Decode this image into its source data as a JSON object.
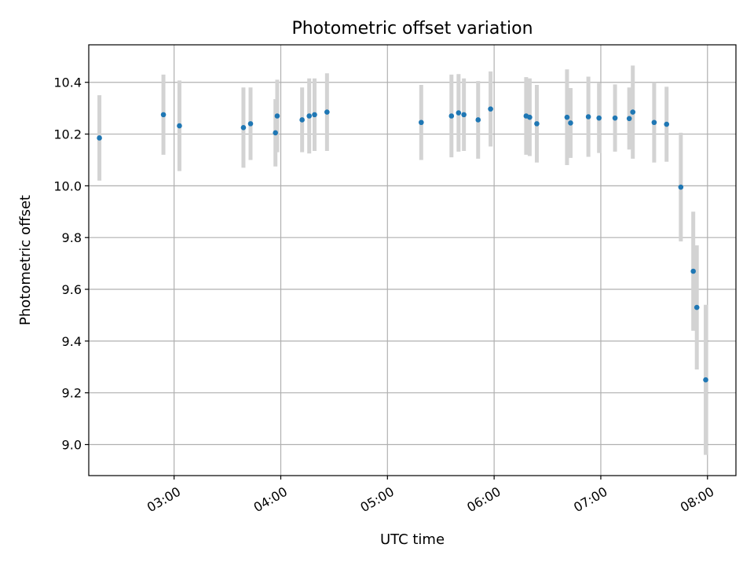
{
  "chart_data": {
    "type": "scatter",
    "title": "Photometric offset variation",
    "xlabel": "UTC time",
    "ylabel": "Photometric offset",
    "x_unit": "UTC time (HH:MM)",
    "xlim": [
      "02:12",
      "08:16"
    ],
    "ylim": [
      8.88,
      10.545
    ],
    "x_ticks": [
      "03:00",
      "04:00",
      "05:00",
      "06:00",
      "07:00",
      "08:00"
    ],
    "y_ticks": [
      9.0,
      9.2,
      9.4,
      9.6,
      9.8,
      10.0,
      10.2,
      10.4
    ],
    "y_tick_labels": [
      "9.0",
      "9.2",
      "9.4",
      "9.6",
      "9.8",
      "10.0",
      "10.2",
      "10.4"
    ],
    "grid": true,
    "marker_color": "#1f77b4",
    "errorbar_color": "#d3d3d3",
    "points": [
      {
        "x": "02:18",
        "y": 10.185,
        "err": 0.165
      },
      {
        "x": "02:54",
        "y": 10.275,
        "err": 0.155
      },
      {
        "x": "03:03",
        "y": 10.232,
        "err": 0.175
      },
      {
        "x": "03:39",
        "y": 10.225,
        "err": 0.155
      },
      {
        "x": "03:43",
        "y": 10.24,
        "err": 0.14
      },
      {
        "x": "03:57",
        "y": 10.205,
        "err": 0.13
      },
      {
        "x": "03:58",
        "y": 10.27,
        "err": 0.14
      },
      {
        "x": "04:12",
        "y": 10.255,
        "err": 0.125
      },
      {
        "x": "04:16",
        "y": 10.27,
        "err": 0.145
      },
      {
        "x": "04:19",
        "y": 10.275,
        "err": 0.14
      },
      {
        "x": "04:26",
        "y": 10.285,
        "err": 0.15
      },
      {
        "x": "05:19",
        "y": 10.245,
        "err": 0.145
      },
      {
        "x": "05:36",
        "y": 10.27,
        "err": 0.16
      },
      {
        "x": "05:40",
        "y": 10.282,
        "err": 0.15
      },
      {
        "x": "05:43",
        "y": 10.275,
        "err": 0.14
      },
      {
        "x": "05:51",
        "y": 10.255,
        "err": 0.15
      },
      {
        "x": "05:58",
        "y": 10.297,
        "err": 0.145
      },
      {
        "x": "06:18",
        "y": 10.27,
        "err": 0.15
      },
      {
        "x": "06:20",
        "y": 10.265,
        "err": 0.15
      },
      {
        "x": "06:24",
        "y": 10.24,
        "err": 0.15
      },
      {
        "x": "06:41",
        "y": 10.265,
        "err": 0.185
      },
      {
        "x": "06:43",
        "y": 10.243,
        "err": 0.135
      },
      {
        "x": "06:53",
        "y": 10.267,
        "err": 0.155
      },
      {
        "x": "06:59",
        "y": 10.262,
        "err": 0.135
      },
      {
        "x": "07:08",
        "y": 10.262,
        "err": 0.13
      },
      {
        "x": "07:16",
        "y": 10.26,
        "err": 0.12
      },
      {
        "x": "07:18",
        "y": 10.285,
        "err": 0.18
      },
      {
        "x": "07:30",
        "y": 10.245,
        "err": 0.155
      },
      {
        "x": "07:37",
        "y": 10.238,
        "err": 0.145
      },
      {
        "x": "07:45",
        "y": 9.995,
        "err": 0.21
      },
      {
        "x": "07:52",
        "y": 9.67,
        "err": 0.23
      },
      {
        "x": "07:54",
        "y": 9.53,
        "err": 0.24
      },
      {
        "x": "07:59",
        "y": 9.25,
        "err": 0.29
      }
    ]
  }
}
